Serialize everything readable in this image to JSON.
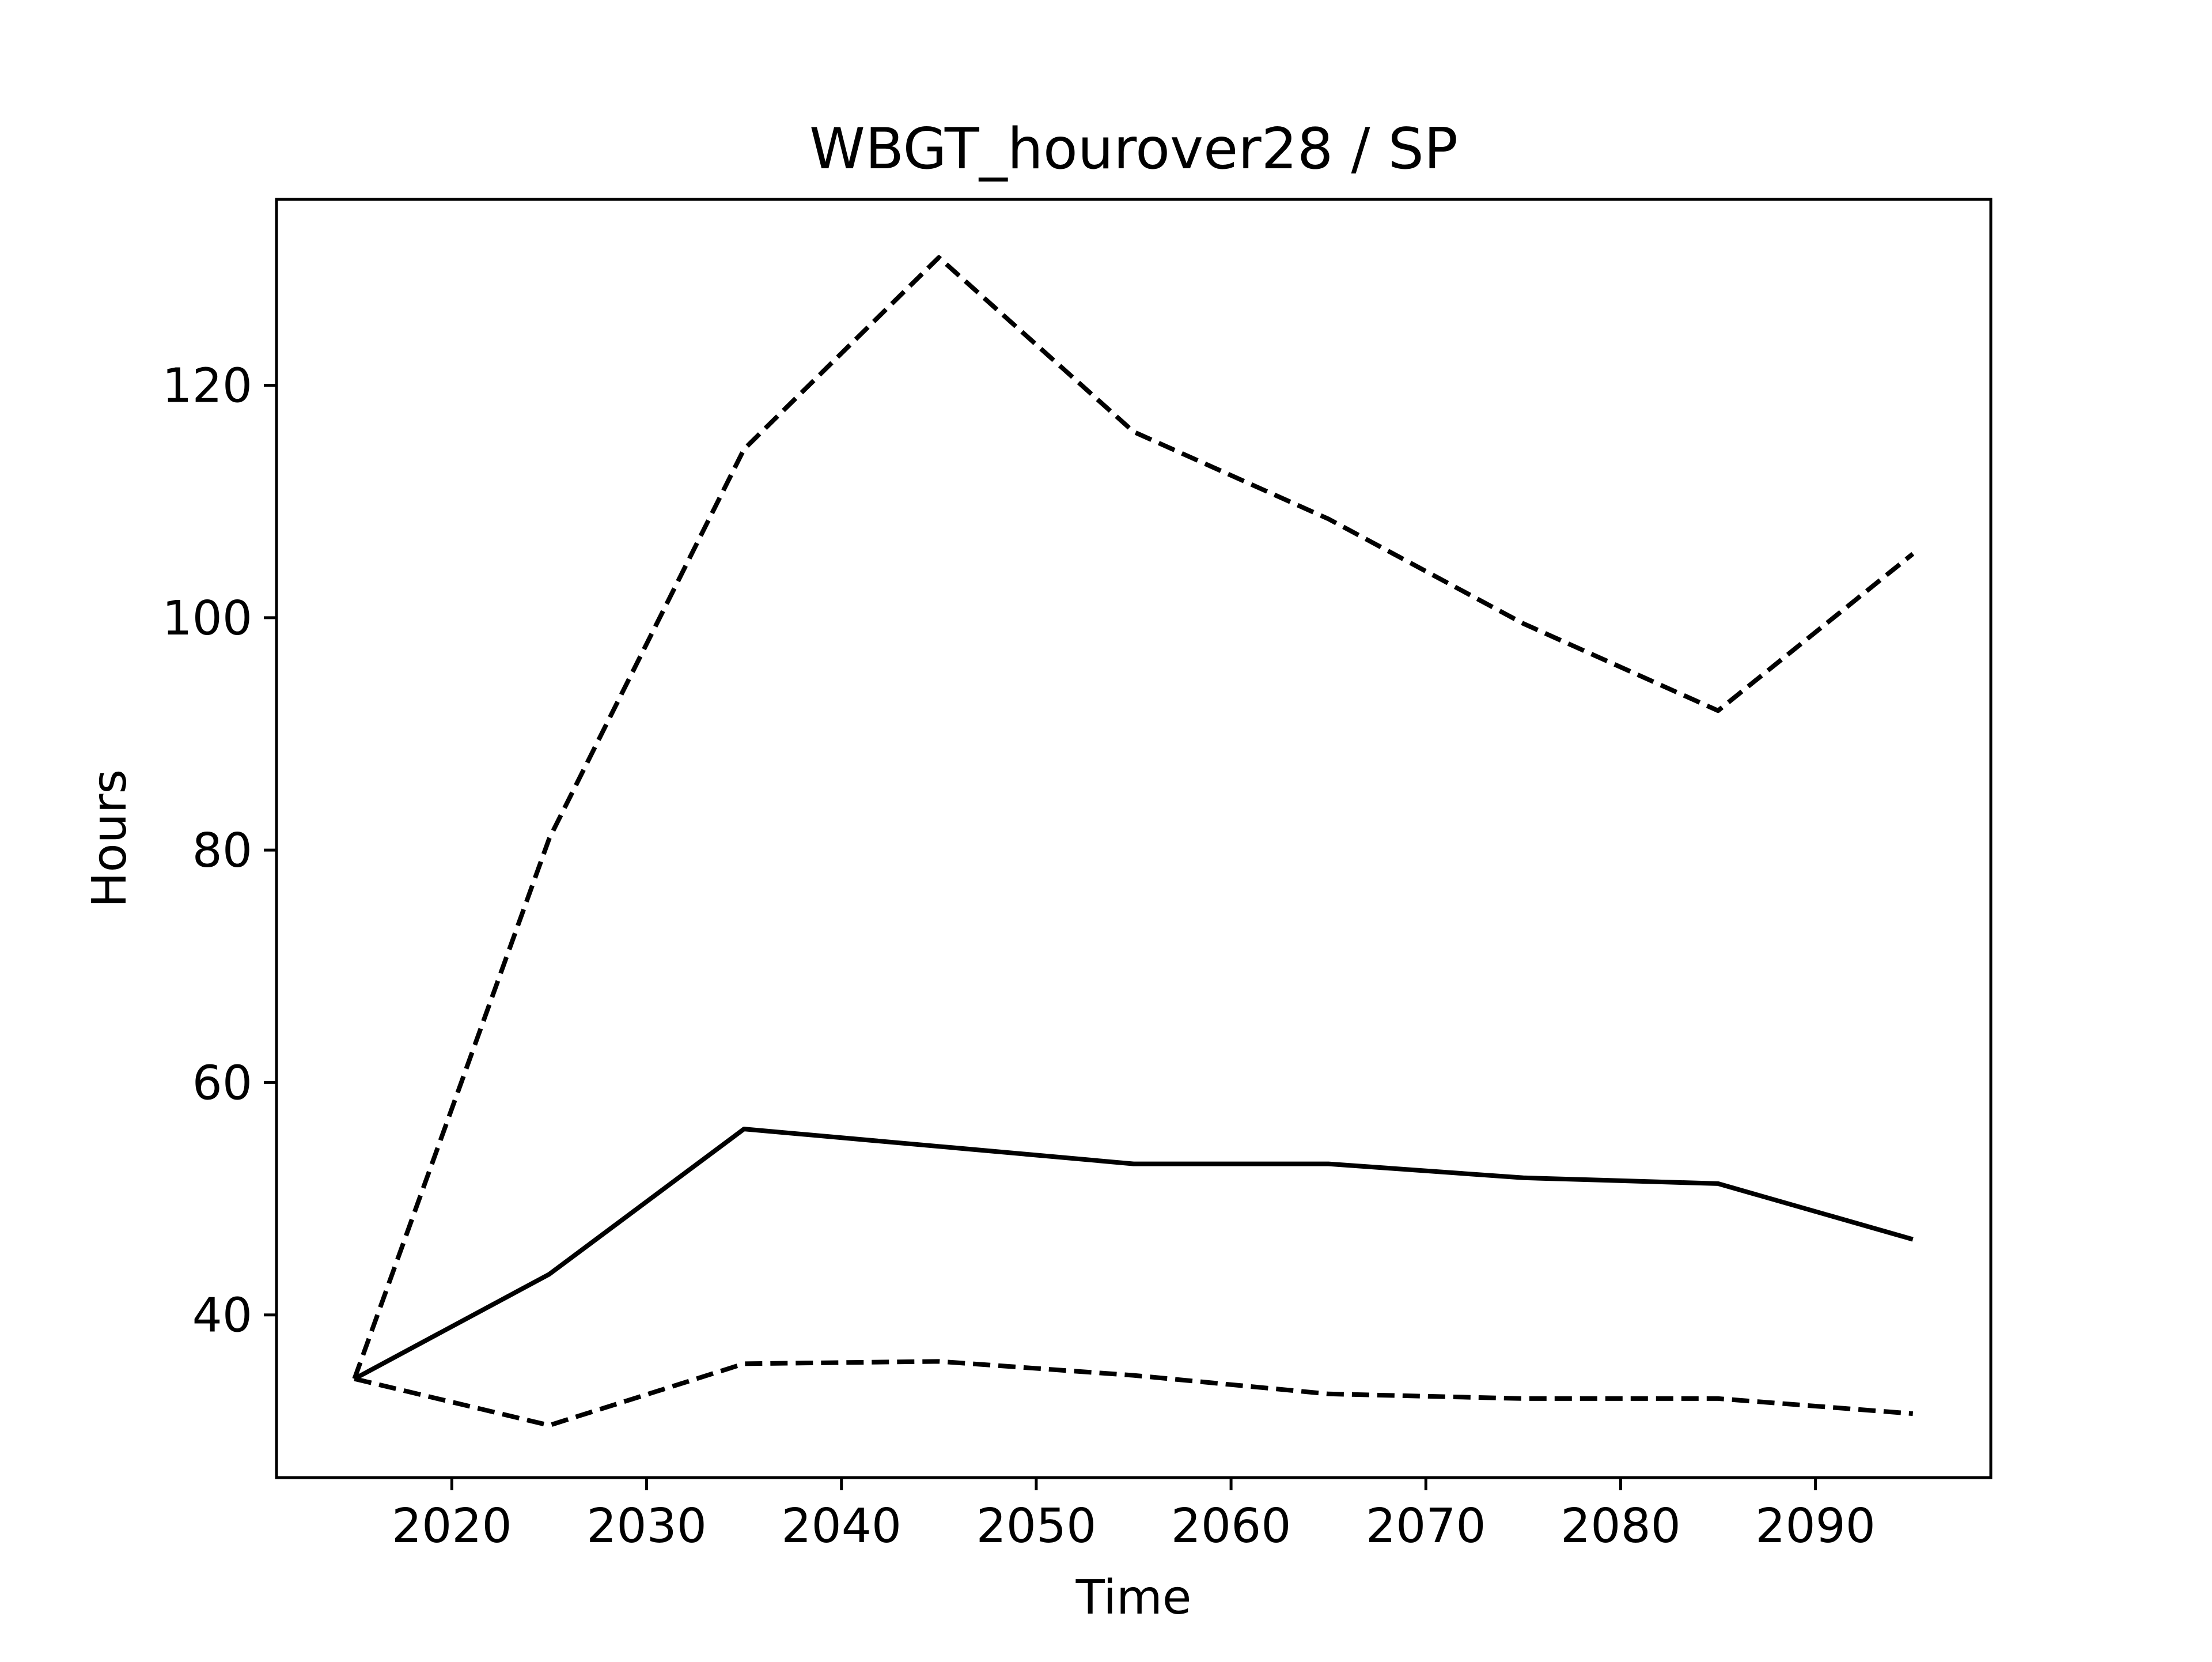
{
  "chart_data": {
    "type": "line",
    "title": "WBGT_hourover28 / SP",
    "xlabel": "Time",
    "ylabel": "Hours",
    "x": [
      2015,
      2025,
      2035,
      2045,
      2055,
      2065,
      2075,
      2085,
      2095
    ],
    "xlim": [
      2011,
      2099
    ],
    "ylim": [
      26,
      136
    ],
    "x_ticks": [
      2020,
      2030,
      2040,
      2050,
      2060,
      2070,
      2080,
      2090
    ],
    "y_ticks": [
      40,
      60,
      80,
      100,
      120
    ],
    "grid": false,
    "legend": "none",
    "series": [
      {
        "values": [
          34.5,
          43.5,
          56.0,
          54.5,
          53.0,
          53.0,
          51.8,
          51.3,
          46.5
        ],
        "style": "solid",
        "color": "#000000"
      },
      {
        "values": [
          34.5,
          81.0,
          114.5,
          131.0,
          116.0,
          108.5,
          99.5,
          92.0,
          105.5
        ],
        "style": "dashed",
        "color": "#000000"
      },
      {
        "values": [
          34.5,
          30.5,
          35.8,
          36.0,
          34.8,
          33.2,
          32.8,
          32.8,
          31.5
        ],
        "style": "dashed",
        "color": "#000000"
      }
    ]
  }
}
